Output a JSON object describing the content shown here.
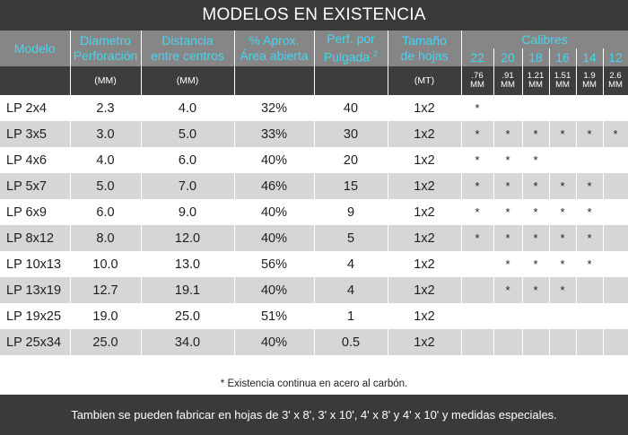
{
  "title": "MODELOS EN EXISTENCIA",
  "headers": {
    "modelo": "Modelo",
    "diametro_line1": "Diametro",
    "diametro_line2": "Perforación",
    "distancia_line1": "Distancia",
    "distancia_line2": "entre centros",
    "area_line1": "% Aprox.",
    "area_line2": "Área abierta",
    "perf_line1": "Perf. por",
    "perf_line2": "Pulgada",
    "perf_sup": "2",
    "tamano_line1": "Tamaño",
    "tamano_line2": "de hojas",
    "calibres": "Calibres",
    "gauges": [
      "22",
      "20",
      "18",
      "16",
      "14",
      "12"
    ],
    "units": {
      "diametro": "(MM)",
      "distancia": "(MM)",
      "tamano": "(MT)"
    },
    "gauge_units": [
      {
        "top": ".76",
        "bottom": "MM"
      },
      {
        "top": ".91",
        "bottom": "MM"
      },
      {
        "top": "1.21",
        "bottom": "MM"
      },
      {
        "top": "1.51",
        "bottom": "MM"
      },
      {
        "top": "1.9",
        "bottom": "MM"
      },
      {
        "top": "2.6",
        "bottom": "MM"
      }
    ]
  },
  "rows": [
    {
      "modelo": "LP 2x4",
      "diametro": "2.3",
      "distancia": "4.0",
      "area": "32%",
      "perf": "40",
      "tamano": "1x2",
      "calibres": [
        "*",
        "",
        "",
        "",
        "",
        ""
      ]
    },
    {
      "modelo": "LP 3x5",
      "diametro": "3.0",
      "distancia": "5.0",
      "area": "33%",
      "perf": "30",
      "tamano": "1x2",
      "calibres": [
        "*",
        "*",
        "*",
        "*",
        "*",
        "*"
      ]
    },
    {
      "modelo": "LP 4x6",
      "diametro": "4.0",
      "distancia": "6.0",
      "area": "40%",
      "perf": "20",
      "tamano": "1x2",
      "calibres": [
        "*",
        "*",
        "*",
        "",
        "",
        ""
      ]
    },
    {
      "modelo": "LP 5x7",
      "diametro": "5.0",
      "distancia": "7.0",
      "area": "46%",
      "perf": "15",
      "tamano": "1x2",
      "calibres": [
        "*",
        "*",
        "*",
        "*",
        "*",
        ""
      ]
    },
    {
      "modelo": "LP 6x9",
      "diametro": "6.0",
      "distancia": "9.0",
      "area": "40%",
      "perf": "9",
      "tamano": "1x2",
      "calibres": [
        "*",
        "*",
        "*",
        "*",
        "*",
        ""
      ]
    },
    {
      "modelo": "LP 8x12",
      "diametro": "8.0",
      "distancia": "12.0",
      "area": "40%",
      "perf": "5",
      "tamano": "1x2",
      "calibres": [
        "*",
        "*",
        "*",
        "*",
        "*",
        ""
      ]
    },
    {
      "modelo": "LP 10x13",
      "diametro": "10.0",
      "distancia": "13.0",
      "area": "56%",
      "perf": "4",
      "tamano": "1x2",
      "calibres": [
        "",
        "*",
        "*",
        "*",
        "*",
        ""
      ]
    },
    {
      "modelo": "LP 13x19",
      "diametro": "12.7",
      "distancia": "19.1",
      "area": "40%",
      "perf": "4",
      "tamano": "1x2",
      "calibres": [
        "",
        "*",
        "*",
        "*",
        "",
        ""
      ]
    },
    {
      "modelo": "LP 19x25",
      "diametro": "19.0",
      "distancia": "25.0",
      "area": "51%",
      "perf": "1",
      "tamano": "1x2",
      "calibres": [
        "",
        "",
        "",
        "",
        "",
        ""
      ]
    },
    {
      "modelo": "LP 25x34",
      "diametro": "25.0",
      "distancia": "34.0",
      "area": "40%",
      "perf": "0.5",
      "tamano": "1x2",
      "calibres": [
        "",
        "",
        "",
        "",
        "",
        ""
      ]
    }
  ],
  "footnote": "* Existencia continua en acero al carbón.",
  "bottom_note": "Tambien se pueden fabricar en hojas de 3' x 8', 3' x 10', 4' x 8' y 4' x 10' y medidas especiales."
}
